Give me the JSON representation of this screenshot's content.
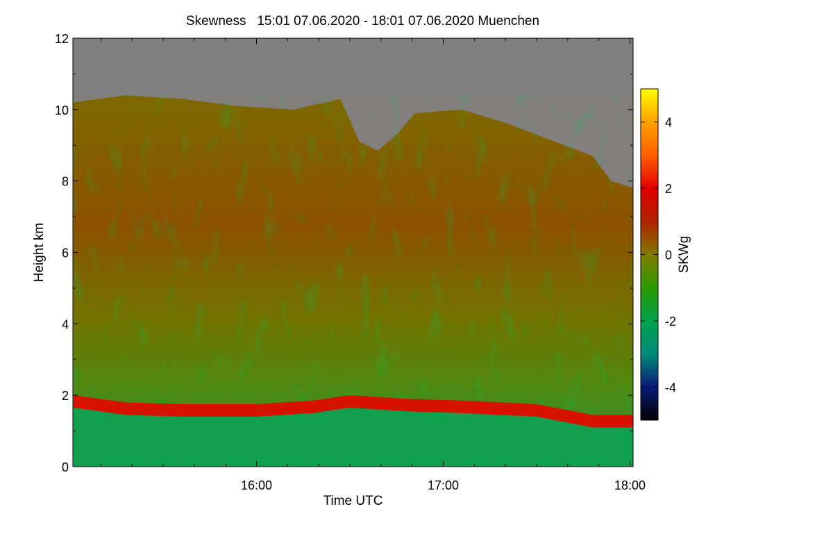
{
  "chart_data": {
    "type": "heatmap",
    "title": "Skewness   15:01 07.06.2020 - 18:01 07.06.2020 Muenchen",
    "xlabel": "Time UTC",
    "ylabel": "Height km",
    "xlim_hours": [
      15.0167,
      18.0167
    ],
    "ylim": [
      0,
      12
    ],
    "x_ticks": [
      {
        "label": "16:00",
        "value": 16
      },
      {
        "label": "17:00",
        "value": 17
      },
      {
        "label": "18:00",
        "value": 18
      }
    ],
    "y_ticks": [
      {
        "label": "0",
        "value": 0
      },
      {
        "label": "2",
        "value": 2
      },
      {
        "label": "4",
        "value": 4
      },
      {
        "label": "6",
        "value": 6
      },
      {
        "label": "8",
        "value": 8
      },
      {
        "label": "10",
        "value": 10
      },
      {
        "label": "12",
        "value": 12
      }
    ],
    "colorbar": {
      "label": "SKWg",
      "range": [
        -5,
        5
      ],
      "ticks": [
        {
          "label": "4",
          "value": 4
        },
        {
          "label": "2",
          "value": 2
        },
        {
          "label": "0",
          "value": 0
        },
        {
          "label": "-2",
          "value": -2
        },
        {
          "label": "-4",
          "value": -4
        }
      ],
      "colors": [
        "#000000",
        "#0a1c78",
        "#008a78",
        "#00a24c",
        "#2c9a00",
        "#807a00",
        "#b02000",
        "#e00000",
        "#ff6000",
        "#ffa000",
        "#ffff00"
      ]
    },
    "no_data_color": "#808080",
    "cloud_top_km": [
      {
        "t": 15.02,
        "h": 10.2
      },
      {
        "t": 15.3,
        "h": 10.4
      },
      {
        "t": 15.6,
        "h": 10.3
      },
      {
        "t": 15.9,
        "h": 10.1
      },
      {
        "t": 16.2,
        "h": 10.0
      },
      {
        "t": 16.45,
        "h": 10.3
      },
      {
        "t": 16.55,
        "h": 9.1
      },
      {
        "t": 16.65,
        "h": 8.85
      },
      {
        "t": 16.75,
        "h": 9.3
      },
      {
        "t": 16.85,
        "h": 9.9
      },
      {
        "t": 17.1,
        "h": 10.0
      },
      {
        "t": 17.35,
        "h": 9.6
      },
      {
        "t": 17.6,
        "h": 9.1
      },
      {
        "t": 17.8,
        "h": 8.7
      },
      {
        "t": 17.9,
        "h": 8.0
      },
      {
        "t": 18.02,
        "h": 7.8
      }
    ],
    "boundary_layer_top_km": [
      {
        "t": 15.02,
        "h": 1.75
      },
      {
        "t": 15.3,
        "h": 1.55
      },
      {
        "t": 15.6,
        "h": 1.5
      },
      {
        "t": 16.0,
        "h": 1.5
      },
      {
        "t": 16.3,
        "h": 1.6
      },
      {
        "t": 16.5,
        "h": 1.75
      },
      {
        "t": 16.8,
        "h": 1.65
      },
      {
        "t": 17.1,
        "h": 1.6
      },
      {
        "t": 17.5,
        "h": 1.5
      },
      {
        "t": 17.8,
        "h": 1.2
      },
      {
        "t": 18.02,
        "h": 1.2
      }
    ]
  }
}
